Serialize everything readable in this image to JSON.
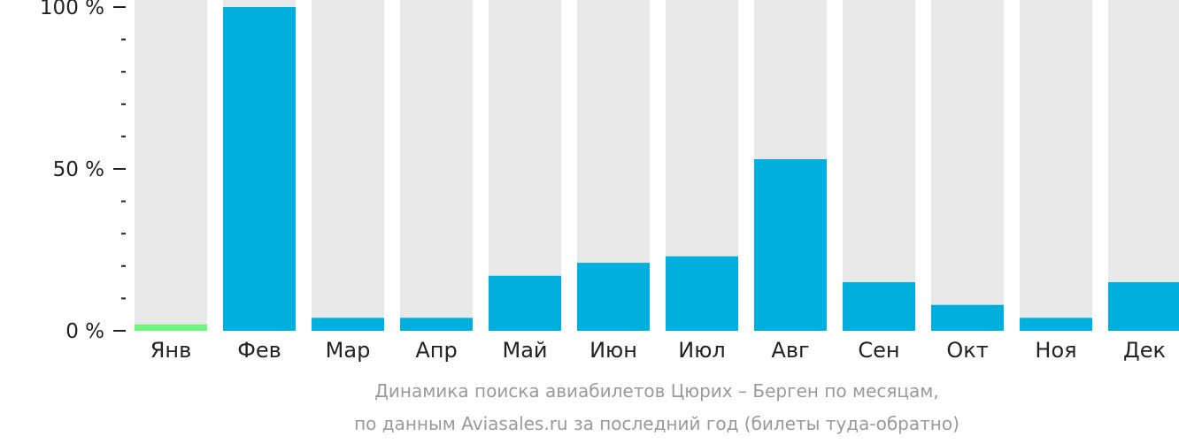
{
  "chart_data": {
    "type": "bar",
    "categories": [
      "Янв",
      "Фев",
      "Мар",
      "Апр",
      "Май",
      "Июн",
      "Июл",
      "Авг",
      "Сен",
      "Окт",
      "Ноя",
      "Дек"
    ],
    "values": [
      2,
      100,
      4,
      4,
      17,
      21,
      23,
      53,
      15,
      8,
      4,
      15
    ],
    "ylim": [
      0,
      100
    ],
    "yticks": [
      {
        "value": 0,
        "label": "0 %"
      },
      {
        "value": 50,
        "label": "50 %"
      },
      {
        "value": 100,
        "label": "100 %"
      }
    ],
    "minor_tick_step": 10,
    "colors": {
      "bar": "#00afdd",
      "lowest_bar": "#6ef582",
      "track": "#e8e8e8",
      "text": "#222222"
    },
    "caption_line1": "Динамика поиска авиабилетов Цюрих – Берген по месяцам,",
    "caption_line2": "по данным Aviasales.ru за последний год (билеты туда-обратно)"
  }
}
